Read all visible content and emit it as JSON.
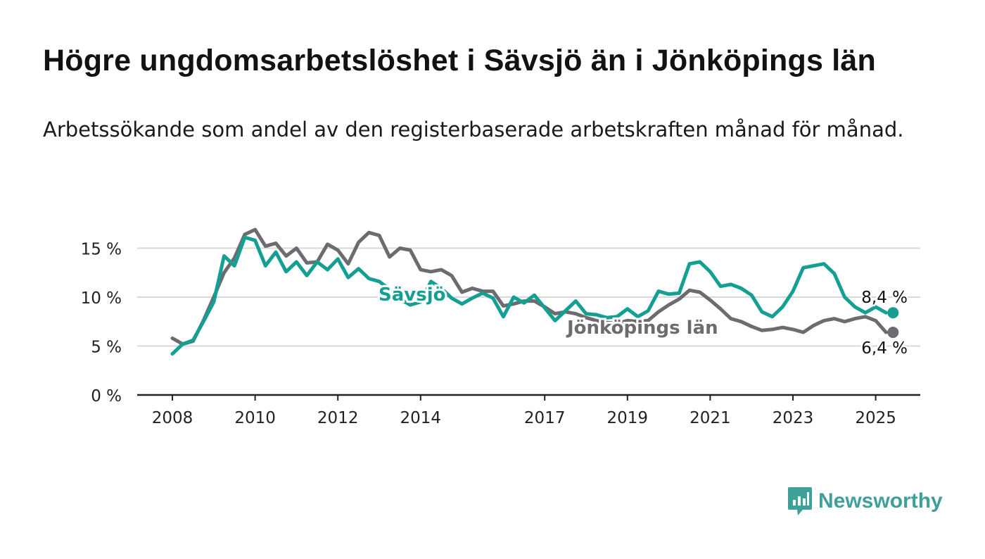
{
  "title": "Högre ungdomsarbetslöshet i Sävsjö än i Jönköpings län",
  "subtitle": "Arbetssökande som andel av den registerbaserade arbetskraften månad för månad.",
  "brand": {
    "name": "Newsworthy",
    "icon": "newsworthy-logo-icon",
    "color": "#3f9f99"
  },
  "chart_data": {
    "type": "line",
    "title": "Högre ungdomsarbetslöshet i Sävsjö än i Jönköpings län",
    "xlabel": "",
    "ylabel": "",
    "x_ticks": [
      "2008",
      "2010",
      "2012",
      "2014",
      "2017",
      "2019",
      "2021",
      "2023",
      "2025"
    ],
    "y_ticks": [
      "0 %",
      "5 %",
      "10 %",
      "15 %"
    ],
    "xlim": [
      2008,
      2025.25
    ],
    "ylim": [
      0,
      15.5
    ],
    "grid": "horizontal",
    "legend": "inline labels",
    "series": [
      {
        "name": "Sävsjö",
        "color": "#159f92",
        "end_label": "8,4 %",
        "points": [
          [
            2008.0,
            4.2
          ],
          [
            2008.25,
            5.2
          ],
          [
            2008.5,
            5.6
          ],
          [
            2008.75,
            7.5
          ],
          [
            2009.0,
            9.5
          ],
          [
            2009.25,
            14.2
          ],
          [
            2009.5,
            13.2
          ],
          [
            2009.75,
            16.1
          ],
          [
            2010.0,
            15.8
          ],
          [
            2010.25,
            13.2
          ],
          [
            2010.5,
            14.6
          ],
          [
            2010.75,
            12.6
          ],
          [
            2011.0,
            13.6
          ],
          [
            2011.25,
            12.2
          ],
          [
            2011.5,
            13.6
          ],
          [
            2011.75,
            12.8
          ],
          [
            2012.0,
            13.9
          ],
          [
            2012.25,
            12.0
          ],
          [
            2012.5,
            12.9
          ],
          [
            2012.75,
            11.9
          ],
          [
            2013.0,
            11.6
          ],
          [
            2013.25,
            10.8
          ],
          [
            2013.5,
            9.8
          ],
          [
            2013.75,
            9.2
          ],
          [
            2014.0,
            9.5
          ],
          [
            2014.25,
            11.6
          ],
          [
            2014.5,
            10.9
          ],
          [
            2014.75,
            9.9
          ],
          [
            2015.0,
            9.3
          ],
          [
            2015.25,
            9.9
          ],
          [
            2015.5,
            10.4
          ],
          [
            2015.75,
            9.9
          ],
          [
            2016.0,
            8.0
          ],
          [
            2016.25,
            10.0
          ],
          [
            2016.5,
            9.4
          ],
          [
            2016.75,
            10.2
          ],
          [
            2017.0,
            8.9
          ],
          [
            2017.25,
            7.6
          ],
          [
            2017.5,
            8.6
          ],
          [
            2017.75,
            9.6
          ],
          [
            2018.0,
            8.3
          ],
          [
            2018.25,
            8.2
          ],
          [
            2018.5,
            7.9
          ],
          [
            2018.75,
            8.0
          ],
          [
            2019.0,
            8.8
          ],
          [
            2019.25,
            8.0
          ],
          [
            2019.5,
            8.6
          ],
          [
            2019.75,
            10.6
          ],
          [
            2020.0,
            10.3
          ],
          [
            2020.25,
            10.4
          ],
          [
            2020.5,
            13.4
          ],
          [
            2020.75,
            13.6
          ],
          [
            2021.0,
            12.6
          ],
          [
            2021.25,
            11.1
          ],
          [
            2021.5,
            11.3
          ],
          [
            2021.75,
            10.9
          ],
          [
            2022.0,
            10.2
          ],
          [
            2022.25,
            8.5
          ],
          [
            2022.5,
            8.0
          ],
          [
            2022.75,
            9.0
          ],
          [
            2023.0,
            10.6
          ],
          [
            2023.25,
            13.0
          ],
          [
            2023.5,
            13.2
          ],
          [
            2023.75,
            13.4
          ],
          [
            2024.0,
            12.4
          ],
          [
            2024.25,
            10.0
          ],
          [
            2024.5,
            9.0
          ],
          [
            2024.75,
            8.4
          ],
          [
            2025.0,
            9.0
          ],
          [
            2025.25,
            8.4
          ]
        ]
      },
      {
        "name": "Jönköpings län",
        "color": "#6b6b70",
        "end_label": "6,4 %",
        "points": [
          [
            2008.0,
            5.8
          ],
          [
            2008.25,
            5.2
          ],
          [
            2008.5,
            5.5
          ],
          [
            2008.75,
            7.6
          ],
          [
            2009.0,
            10.0
          ],
          [
            2009.25,
            12.5
          ],
          [
            2009.5,
            14.0
          ],
          [
            2009.75,
            16.4
          ],
          [
            2010.0,
            16.9
          ],
          [
            2010.25,
            15.2
          ],
          [
            2010.5,
            15.5
          ],
          [
            2010.75,
            14.2
          ],
          [
            2011.0,
            15.0
          ],
          [
            2011.25,
            13.5
          ],
          [
            2011.5,
            13.6
          ],
          [
            2011.75,
            15.4
          ],
          [
            2012.0,
            14.8
          ],
          [
            2012.25,
            13.4
          ],
          [
            2012.5,
            15.6
          ],
          [
            2012.75,
            16.6
          ],
          [
            2013.0,
            16.3
          ],
          [
            2013.25,
            14.1
          ],
          [
            2013.5,
            15.0
          ],
          [
            2013.75,
            14.8
          ],
          [
            2014.0,
            12.8
          ],
          [
            2014.25,
            12.6
          ],
          [
            2014.5,
            12.8
          ],
          [
            2014.75,
            12.2
          ],
          [
            2015.0,
            10.5
          ],
          [
            2015.25,
            10.9
          ],
          [
            2015.5,
            10.6
          ],
          [
            2015.75,
            10.6
          ],
          [
            2016.0,
            9.1
          ],
          [
            2016.25,
            9.3
          ],
          [
            2016.5,
            9.6
          ],
          [
            2016.75,
            9.6
          ],
          [
            2017.0,
            9.0
          ],
          [
            2017.25,
            8.3
          ],
          [
            2017.5,
            8.5
          ],
          [
            2017.75,
            8.3
          ],
          [
            2018.0,
            7.9
          ],
          [
            2018.25,
            7.6
          ],
          [
            2018.5,
            7.4
          ],
          [
            2018.75,
            7.3
          ],
          [
            2019.0,
            7.6
          ],
          [
            2019.25,
            7.5
          ],
          [
            2019.5,
            7.6
          ],
          [
            2019.75,
            8.5
          ],
          [
            2020.0,
            9.2
          ],
          [
            2020.25,
            9.8
          ],
          [
            2020.5,
            10.7
          ],
          [
            2020.75,
            10.5
          ],
          [
            2021.0,
            9.7
          ],
          [
            2021.25,
            8.8
          ],
          [
            2021.5,
            7.8
          ],
          [
            2021.75,
            7.5
          ],
          [
            2022.0,
            7.0
          ],
          [
            2022.25,
            6.6
          ],
          [
            2022.5,
            6.7
          ],
          [
            2022.75,
            6.9
          ],
          [
            2023.0,
            6.7
          ],
          [
            2023.25,
            6.4
          ],
          [
            2023.5,
            7.1
          ],
          [
            2023.75,
            7.6
          ],
          [
            2024.0,
            7.8
          ],
          [
            2024.25,
            7.5
          ],
          [
            2024.5,
            7.8
          ],
          [
            2024.75,
            8.0
          ],
          [
            2025.0,
            7.6
          ],
          [
            2025.25,
            6.4
          ]
        ]
      }
    ]
  }
}
